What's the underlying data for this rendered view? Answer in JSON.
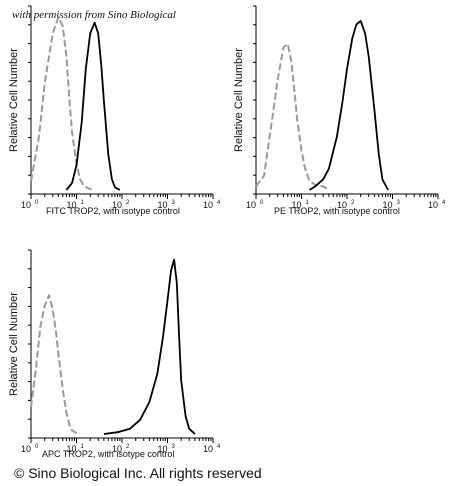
{
  "watermark": "with permission from Sino Biological",
  "copyright": "© Sino Biological Inc. All rights reserved",
  "chart_data": [
    {
      "type": "line",
      "xscale": "log",
      "xlim": [
        1,
        10000
      ],
      "ylim": [
        0,
        1
      ],
      "ylabel": "Relative Cell Number",
      "xlabel": "FITC  TROP2,  with isotype control",
      "xticks": [
        {
          "base": "10",
          "exp": "0"
        },
        {
          "base": "10",
          "exp": "1"
        },
        {
          "base": "10",
          "exp": "2"
        },
        {
          "base": "10",
          "exp": "3"
        },
        {
          "base": "10",
          "exp": "4"
        }
      ],
      "series": [
        {
          "role": "isotype",
          "color": "#9a9a9a",
          "dashed": true,
          "x": [
            1,
            1.5,
            2,
            3,
            4,
            5,
            6,
            7,
            8,
            10,
            12,
            15,
            20,
            25
          ],
          "y": [
            0.05,
            0.3,
            0.6,
            0.88,
            0.97,
            0.92,
            0.75,
            0.5,
            0.32,
            0.15,
            0.06,
            0.02,
            0.005,
            0
          ]
        },
        {
          "role": "TROP2",
          "color": "#000000",
          "dashed": false,
          "x": [
            6,
            8,
            10,
            13,
            16,
            20,
            25,
            30,
            35,
            40,
            50,
            60,
            70,
            90
          ],
          "y": [
            0,
            0.04,
            0.14,
            0.38,
            0.68,
            0.88,
            0.94,
            0.88,
            0.7,
            0.5,
            0.2,
            0.06,
            0.015,
            0
          ]
        }
      ]
    },
    {
      "type": "line",
      "xscale": "log",
      "xlim": [
        1,
        10000
      ],
      "ylim": [
        0,
        1
      ],
      "ylabel": "Relative Cell Number",
      "xlabel": "PE  TROP2,  with isotype control",
      "xticks": [
        {
          "base": "10",
          "exp": "0"
        },
        {
          "base": "10",
          "exp": "1"
        },
        {
          "base": "10",
          "exp": "2"
        },
        {
          "base": "10",
          "exp": "3"
        },
        {
          "base": "10",
          "exp": "4"
        }
      ],
      "series": [
        {
          "role": "isotype",
          "color": "#9a9a9a",
          "dashed": true,
          "x": [
            1,
            1.5,
            2,
            3,
            4,
            5,
            6,
            7,
            8,
            10,
            12,
            15,
            20,
            30,
            40
          ],
          "y": [
            0.02,
            0.08,
            0.3,
            0.62,
            0.8,
            0.82,
            0.72,
            0.55,
            0.4,
            0.22,
            0.12,
            0.05,
            0.03,
            0.02,
            0
          ]
        },
        {
          "role": "TROP2",
          "color": "#000000",
          "dashed": false,
          "x": [
            15,
            20,
            30,
            40,
            60,
            80,
            100,
            130,
            160,
            200,
            250,
            300,
            400,
            500,
            600,
            800
          ],
          "y": [
            0,
            0.02,
            0.06,
            0.12,
            0.3,
            0.5,
            0.68,
            0.85,
            0.93,
            0.95,
            0.88,
            0.75,
            0.45,
            0.2,
            0.06,
            0
          ]
        }
      ]
    },
    {
      "type": "line",
      "xscale": "log",
      "xlim": [
        1,
        10000
      ],
      "ylim": [
        0,
        1
      ],
      "ylabel": "Relative Cell Number",
      "xlabel": "APC TROP2, with isotype control",
      "xticks": [
        {
          "base": "10",
          "exp": "0"
        },
        {
          "base": "10",
          "exp": "1"
        },
        {
          "base": "10",
          "exp": "2"
        },
        {
          "base": "10",
          "exp": "3"
        },
        {
          "base": "10",
          "exp": "4"
        }
      ],
      "series": [
        {
          "role": "isotype",
          "color": "#9a9a9a",
          "dashed": true,
          "x": [
            1,
            1.3,
            1.6,
            2,
            2.5,
            3,
            3.5,
            4,
            5,
            6,
            7,
            8,
            10,
            12
          ],
          "y": [
            0.15,
            0.38,
            0.6,
            0.72,
            0.78,
            0.7,
            0.58,
            0.45,
            0.25,
            0.12,
            0.05,
            0.02,
            0.005,
            0
          ]
        },
        {
          "role": "TROP2",
          "color": "#000000",
          "dashed": false,
          "x": [
            40,
            80,
            150,
            250,
            400,
            600,
            800,
            1000,
            1200,
            1400,
            1600,
            1800,
            2000,
            2500,
            3000,
            4000
          ],
          "y": [
            0,
            0.01,
            0.03,
            0.08,
            0.18,
            0.34,
            0.55,
            0.75,
            0.92,
            0.98,
            0.85,
            0.55,
            0.3,
            0.1,
            0.03,
            0
          ]
        }
      ]
    }
  ]
}
